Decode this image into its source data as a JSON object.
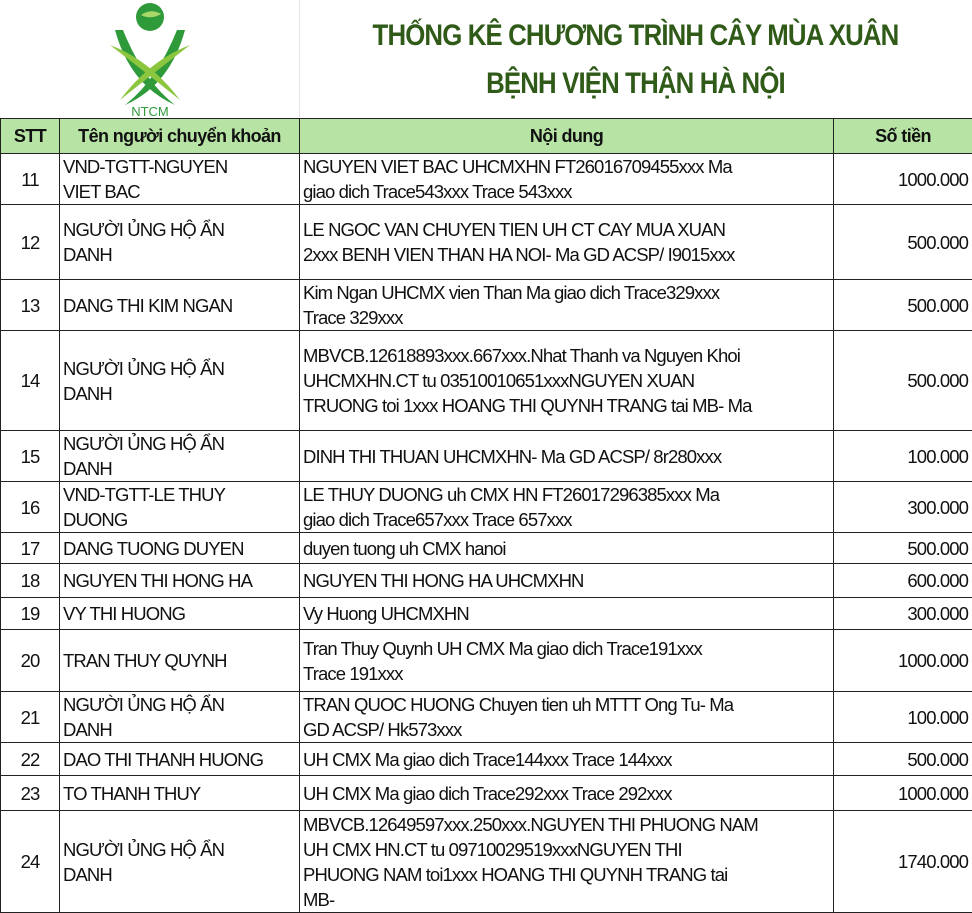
{
  "header": {
    "logo_text": "NTCM",
    "title_line1": "THỐNG KÊ CHƯƠNG TRÌNH CÂY MÙA XUÂN",
    "title_line2": "BỆNH VIỆN THẬN HÀ NỘI",
    "colors": {
      "title": "#2f5a18",
      "header_bg": "#b7e4a5",
      "logo_light": "#8cc63f",
      "logo_dark": "#2e9a3a"
    }
  },
  "table": {
    "columns": [
      "STT",
      "Tên người chuyển khoản",
      "Nội dung",
      "Số tiền"
    ],
    "rows": [
      {
        "stt": "11",
        "name": "VND-TGTT-NGUYEN\nVIET BAC",
        "content": "NGUYEN VIET BAC UHCMXHN FT26016709455xxx Ma\ngiao dich Trace543xxx Trace 543xxx",
        "amount": "1000.000"
      },
      {
        "stt": "12",
        "name": "NGƯỜI ỦNG HỘ ẨN\nDANH",
        "content": "LE NGOC VAN CHUYEN TIEN UH CT CAY MUA XUAN\n2xxx BENH VIEN THAN HA NOI- Ma GD ACSP/ I9015xxx",
        "amount": "500.000"
      },
      {
        "stt": "13",
        "name": "DANG THI KIM NGAN",
        "content": "Kim Ngan UHCMX vien Than Ma giao dich Trace329xxx\nTrace 329xxx",
        "amount": "500.000"
      },
      {
        "stt": "14",
        "name": "NGƯỜI ỦNG HỘ ẨN\nDANH",
        "content": "MBVCB.12618893xxx.667xxx.Nhat Thanh va Nguyen Khoi\nUHCMXHN.CT tu 03510010651xxxNGUYEN XUAN\nTRUONG toi 1xxx HOANG THI QUYNH TRANG tai MB- Ma",
        "amount": "500.000"
      },
      {
        "stt": "15",
        "name": "NGƯỜI ỦNG HỘ ẨN\nDANH",
        "content": "DINH THI THUAN UHCMXHN- Ma GD ACSP/ 8r280xxx",
        "amount": "100.000"
      },
      {
        "stt": "16",
        "name": "VND-TGTT-LE THUY\nDUONG",
        "content": "LE THUY DUONG uh CMX HN FT26017296385xxx Ma\ngiao dich Trace657xxx Trace 657xxx",
        "amount": "300.000"
      },
      {
        "stt": "17",
        "name": "DANG TUONG DUYEN",
        "content": "duyen tuong uh CMX hanoi",
        "amount": "500.000"
      },
      {
        "stt": "18",
        "name": "NGUYEN THI HONG HA",
        "content": "NGUYEN THI HONG HA UHCMXHN",
        "amount": "600.000"
      },
      {
        "stt": "19",
        "name": "VY THI HUONG",
        "content": "Vy Huong UHCMXHN",
        "amount": "300.000"
      },
      {
        "stt": "20",
        "name": "TRAN THUY QUYNH",
        "content": "Tran Thuy Quynh UH CMX Ma giao dich Trace191xxx\nTrace 191xxx",
        "amount": "1000.000"
      },
      {
        "stt": "21",
        "name": "NGƯỜI ỦNG HỘ ẨN\nDANH",
        "content": "TRAN QUOC HUONG Chuyen tien uh MTTT Ong Tu- Ma\nGD ACSP/ Hk573xxx",
        "amount": "100.000"
      },
      {
        "stt": "22",
        "name": "DAO THI THANH HUONG",
        "content": "UH CMX Ma giao dich Trace144xxx Trace 144xxx",
        "amount": "500.000"
      },
      {
        "stt": "23",
        "name": "TO THANH THUY",
        "content": "UH CMX Ma giao dich Trace292xxx Trace 292xxx",
        "amount": "1000.000"
      },
      {
        "stt": "24",
        "name": "NGƯỜI ỦNG HỘ ẨN\nDANH",
        "content": "MBVCB.12649597xxx.250xxx.NGUYEN THI PHUONG NAM\nUH CMX HN.CT tu 09710029519xxxNGUYEN THI\nPHUONG NAM toi1xxx HOANG THI QUYNH TRANG tai\nMB-",
        "amount": "1740.000"
      }
    ]
  }
}
